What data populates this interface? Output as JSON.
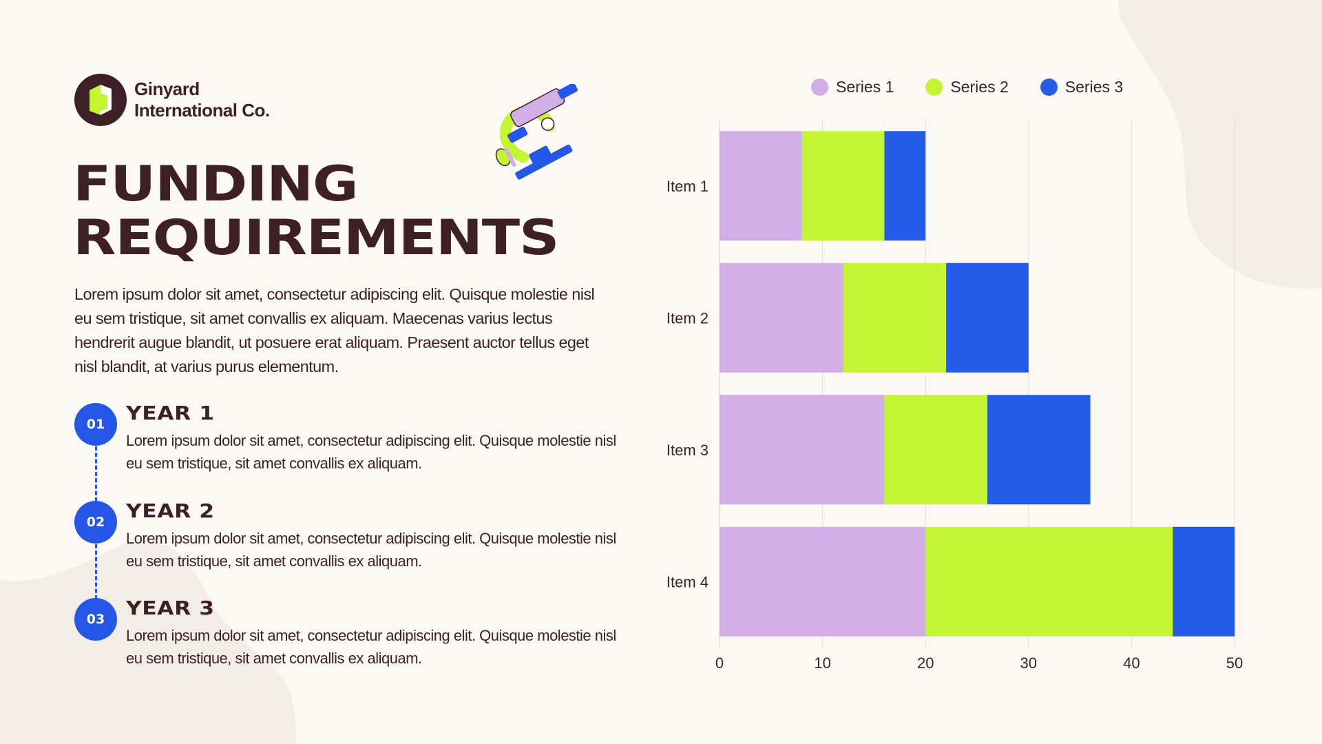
{
  "brand": {
    "name_line1": "Ginyard",
    "name_line2": "International Co."
  },
  "title": {
    "line1": "FUNDING",
    "line2": "REQUIREMENTS"
  },
  "intro": "Lorem ipsum dolor sit amet, consectetur adipiscing elit. Quisque molestie nisl eu sem tristique, sit amet convallis ex aliquam. Maecenas varius lectus hendrerit augue blandit, ut posuere erat aliquam. Praesent auctor tellus eget nisl blandit, at varius purus elementum.",
  "steps": [
    {
      "number": "01",
      "title": "YEAR 1",
      "text": "Lorem ipsum dolor sit amet, consectetur adipiscing elit. Quisque molestie nisl eu sem tristique, sit amet convallis ex aliquam."
    },
    {
      "number": "02",
      "title": "YEAR 2",
      "text": "Lorem ipsum dolor sit amet, consectetur adipiscing elit. Quisque molestie nisl eu sem tristique, sit amet convallis ex aliquam."
    },
    {
      "number": "03",
      "title": "YEAR 3",
      "text": "Lorem ipsum dolor sit amet, consectetur adipiscing elit. Quisque molestie nisl eu sem tristique, sit amet convallis ex aliquam."
    }
  ],
  "icons": {
    "logo": "ginyard-logo",
    "illustration": "microscope-icon"
  },
  "colors": {
    "dark": "#3d1f27",
    "accent_blue": "#2456e8",
    "background": "#fcf9f4",
    "blob": "#f2ede6"
  },
  "chart_data": {
    "type": "bar",
    "orientation": "horizontal",
    "stacked": true,
    "categories": [
      "Item 1",
      "Item 2",
      "Item 3",
      "Item 4"
    ],
    "series": [
      {
        "name": "Series 1",
        "color": "#d1aee6",
        "values": [
          8,
          12,
          16,
          20
        ]
      },
      {
        "name": "Series 2",
        "color": "#c3f534",
        "values": [
          8,
          10,
          10,
          24
        ]
      },
      {
        "name": "Series 3",
        "color": "#245ce8",
        "values": [
          4,
          8,
          10,
          6
        ]
      }
    ],
    "xlim": [
      0,
      50
    ],
    "xticks": [
      0,
      10,
      20,
      30,
      40,
      50
    ],
    "grid": true,
    "legend": "top"
  }
}
